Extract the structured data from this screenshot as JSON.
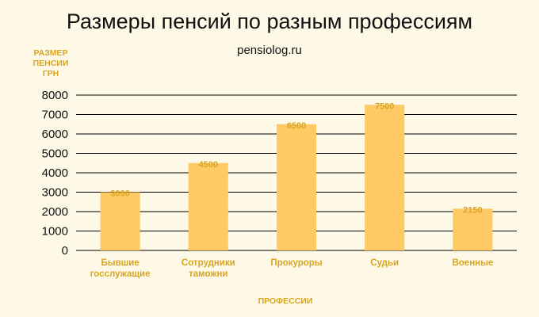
{
  "chart_data": {
    "type": "bar",
    "title": "Размеры пенсий по разным профессиям",
    "subtitle": "pensiolog.ru",
    "ylabel": [
      "РАЗМЕР",
      "ПЕНСИИ",
      "ГРН"
    ],
    "xlabel": "ПРОФЕССИИ",
    "categories": [
      [
        "Бывшие",
        "госслужащие"
      ],
      [
        "Сотрудники",
        "таможни"
      ],
      [
        "Прокуроры"
      ],
      [
        "Судьи"
      ],
      [
        "Военные"
      ]
    ],
    "values": [
      3000,
      4500,
      6500,
      7500,
      2150
    ],
    "ylim": [
      0,
      8000
    ],
    "yticks": [
      0,
      1000,
      2000,
      3000,
      4000,
      5000,
      6000,
      7000,
      8000
    ],
    "grid": true,
    "colors": {
      "bar": "#ffc964",
      "label": "#d9a521",
      "background": "#fef9e6"
    }
  }
}
